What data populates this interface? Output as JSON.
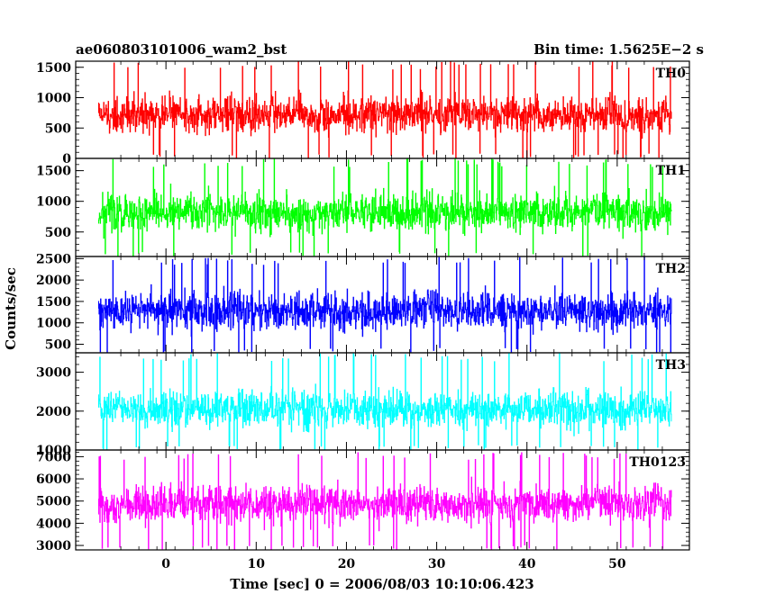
{
  "header": {
    "title": "ae060803101006_wam2_bst",
    "bin_time": "Bin time: 1.5625E−2 s"
  },
  "ylabel": "Counts/sec",
  "xlabel": "Time [sec] 0 = 2006/08/03 10:10:06.423",
  "chart_data": [
    {
      "type": "line",
      "name": "TH0",
      "color": "#ff0000",
      "x_range": [
        -7.5,
        56
      ],
      "ylim": [
        0,
        1600
      ],
      "yticks": [
        0,
        500,
        1000,
        1500
      ],
      "y_mean": 720,
      "y_typical_range": [
        150,
        1300
      ],
      "y_peak": 1600
    },
    {
      "type": "line",
      "name": "TH1",
      "color": "#00ff00",
      "x_range": [
        -7.5,
        56
      ],
      "ylim": [
        100,
        1700
      ],
      "yticks": [
        500,
        1000,
        1500
      ],
      "y_mean": 820,
      "y_typical_range": [
        280,
        1450
      ],
      "y_peak": 1700
    },
    {
      "type": "line",
      "name": "TH2",
      "color": "#0000ff",
      "x_range": [
        -7.5,
        56
      ],
      "ylim": [
        300,
        2550
      ],
      "yticks": [
        500,
        1000,
        1500,
        2000,
        2500
      ],
      "y_mean": 1280,
      "y_typical_range": [
        500,
        2200
      ],
      "y_peak": 2550
    },
    {
      "type": "line",
      "name": "TH3",
      "color": "#00ffff",
      "x_range": [
        -7.5,
        56
      ],
      "ylim": [
        1000,
        3500
      ],
      "yticks": [
        1000,
        2000,
        3000
      ],
      "y_mean": 2050,
      "y_typical_range": [
        1250,
        3100
      ],
      "y_peak": 3500
    },
    {
      "type": "line",
      "name": "TH0123",
      "color": "#ff00ff",
      "x_range": [
        -7.5,
        56
      ],
      "ylim": [
        2800,
        7300
      ],
      "yticks": [
        3000,
        4000,
        5000,
        6000,
        7000
      ],
      "y_mean": 4850,
      "y_typical_range": [
        3300,
        6500
      ],
      "y_peak": 7200
    }
  ],
  "x_axis": {
    "xlim": [
      -10,
      58
    ],
    "ticks": [
      0,
      10,
      20,
      30,
      40,
      50
    ]
  }
}
